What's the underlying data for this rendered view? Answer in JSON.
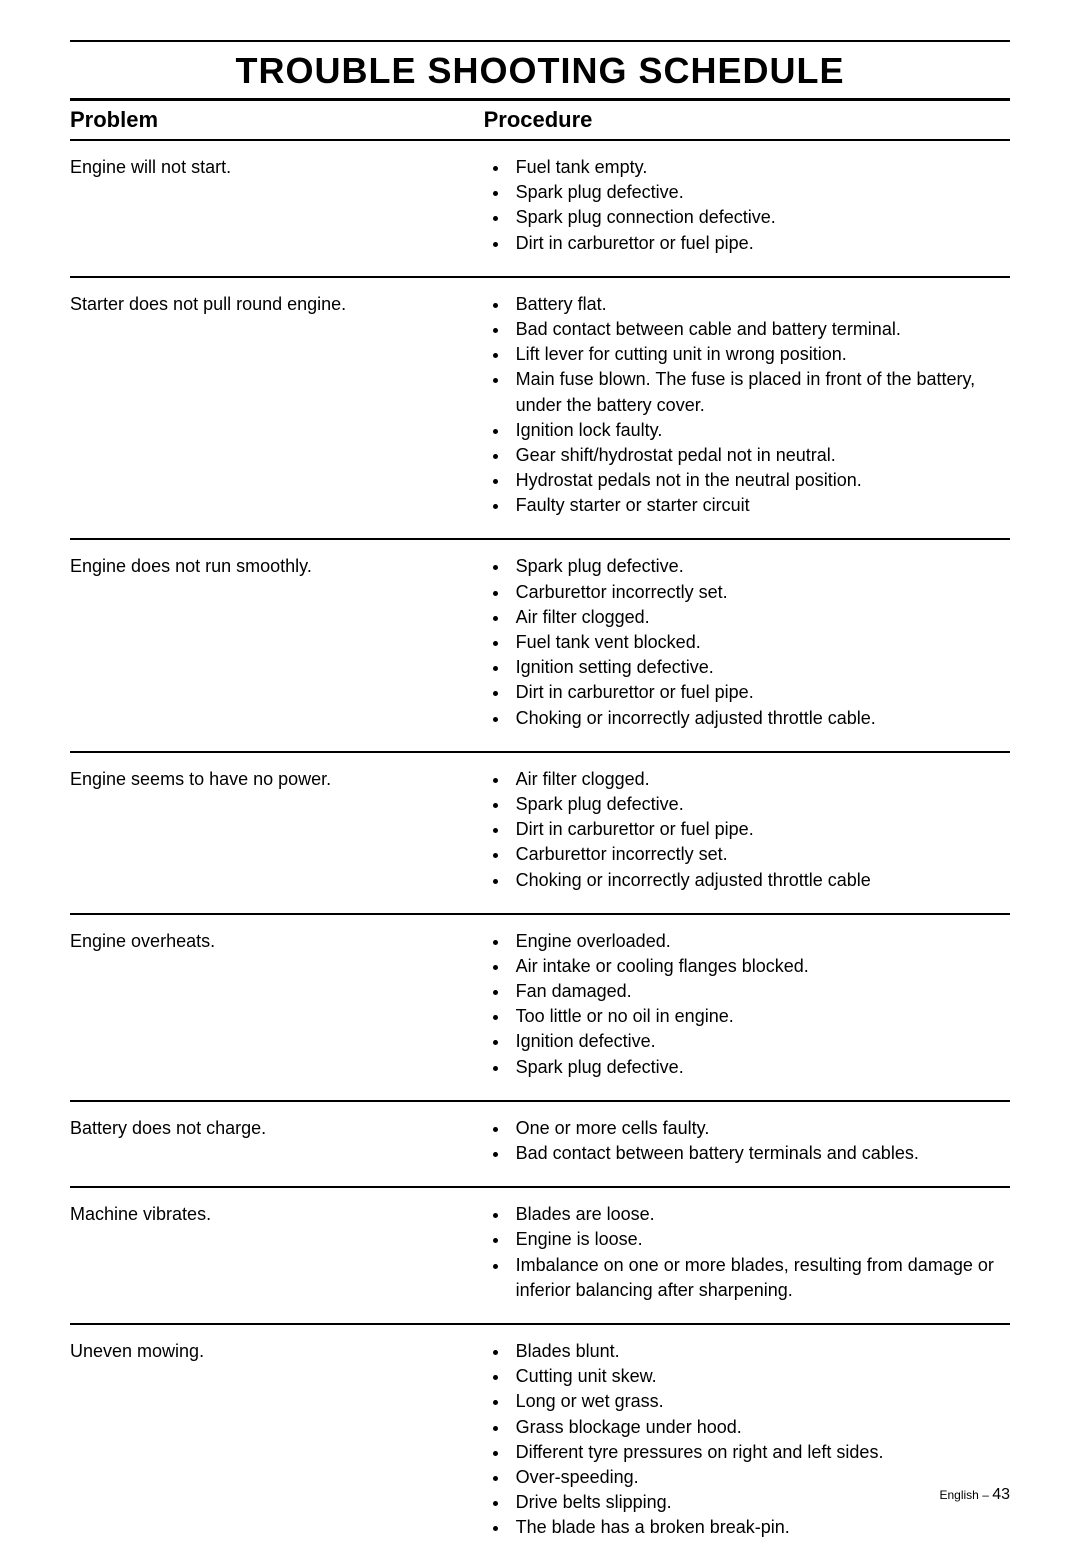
{
  "title": "TROUBLE SHOOTING SCHEDULE",
  "headers": {
    "problem": "Problem",
    "procedure": "Procedure"
  },
  "rows": [
    {
      "problem": "Engine will not start.",
      "items": [
        "Fuel tank empty.",
        "Spark plug defective.",
        "Spark plug connection defective.",
        "Dirt in carburettor or fuel pipe."
      ]
    },
    {
      "problem": "Starter does not pull round engine.",
      "items": [
        "Battery flat.",
        "Bad contact between cable and battery terminal.",
        "Lift lever for cutting unit in wrong position.",
        "Main fuse blown. The fuse is placed in front of the battery, under the battery cover.",
        "Ignition lock faulty.",
        "Gear shift/hydrostat pedal not in neutral.",
        "Hydrostat pedals not in the neutral position.",
        "Faulty starter or starter circuit"
      ]
    },
    {
      "problem": "Engine does not run smoothly.",
      "items": [
        "Spark plug defective.",
        "Carburettor incorrectly set.",
        "Air filter clogged.",
        "Fuel tank vent blocked.",
        "Ignition setting defective.",
        "Dirt in carburettor or fuel pipe.",
        "Choking or incorrectly adjusted throttle cable."
      ]
    },
    {
      "problem": "Engine seems to have no power.",
      "items": [
        "Air filter clogged.",
        "Spark plug defective.",
        "Dirt in carburettor or fuel pipe.",
        "Carburettor incorrectly set.",
        "Choking or incorrectly adjusted throttle cable"
      ]
    },
    {
      "problem": "Engine overheats.",
      "items": [
        "Engine overloaded.",
        "Air intake or cooling flanges blocked.",
        "Fan damaged.",
        "Too little or no oil in engine.",
        "Ignition defective.",
        "Spark plug defective."
      ]
    },
    {
      "problem": "Battery does not charge.",
      "items": [
        "One or more cells faulty.",
        "Bad contact between battery terminals and cables."
      ]
    },
    {
      "problem": "Machine vibrates.",
      "items": [
        "Blades are loose.",
        "Engine is loose.",
        "Imbalance on one or more blades, resulting from damage or inferior balancing after sharpening."
      ]
    },
    {
      "problem": "Uneven mowing.",
      "items": [
        "Blades blunt.",
        "Cutting unit skew.",
        "Long or wet grass.",
        "Grass blockage under hood.",
        "Different tyre pressures on right and left sides.",
        "Over-speeding.",
        "Drive belts slipping.",
        "The blade has a broken break-pin."
      ]
    }
  ],
  "footer": {
    "lang": "English – ",
    "page": "43"
  }
}
